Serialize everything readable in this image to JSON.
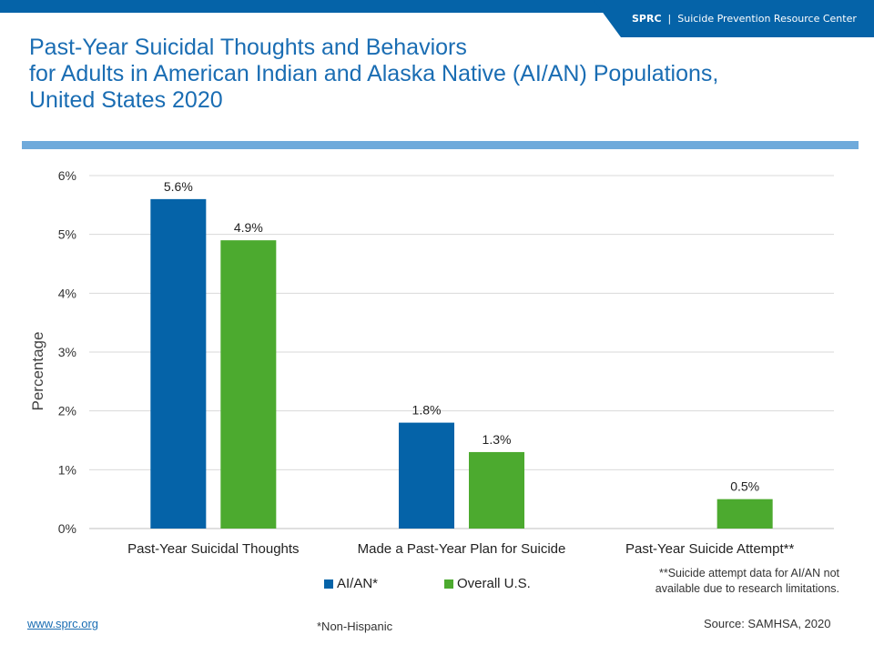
{
  "header": {
    "brand_bold": "SPRC",
    "brand_sep": "|",
    "brand_name": "Suicide Prevention Resource Center"
  },
  "title_lines": [
    "Past-Year Suicidal Thoughts and Behaviors",
    "for Adults in American Indian and Alaska Native (AI/AN) Populations,",
    "United States 2020"
  ],
  "colors": {
    "blue": "#0563a8",
    "green": "#4caa2f",
    "title": "#1a6db3"
  },
  "chart_data": {
    "type": "bar",
    "title": "",
    "xlabel": "",
    "ylabel": "Percentage",
    "ylim": [
      0,
      6
    ],
    "yticks": [
      "0%",
      "1%",
      "2%",
      "3%",
      "4%",
      "5%",
      "6%"
    ],
    "grid": true,
    "legend": "bottom",
    "categories": [
      "Past-Year Suicidal Thoughts",
      "Made a Past-Year Plan for Suicide",
      "Past-Year Suicide Attempt**"
    ],
    "series": [
      {
        "name": "AI/AN*",
        "color": "#0563a8",
        "values": [
          5.6,
          1.8,
          null
        ],
        "labels": [
          "5.6%",
          "1.8%",
          ""
        ]
      },
      {
        "name": "Overall U.S.",
        "color": "#4caa2f",
        "values": [
          4.9,
          1.3,
          0.5
        ],
        "labels": [
          "4.9%",
          "1.3%",
          "0.5%"
        ]
      }
    ]
  },
  "notes": {
    "attempt": "**Suicide attempt data for AI/AN not available due to research limitations.",
    "non_hispanic": "*Non-Hispanic",
    "source": "Source: SAMHSA, 2020",
    "website": "www.sprc.org"
  }
}
